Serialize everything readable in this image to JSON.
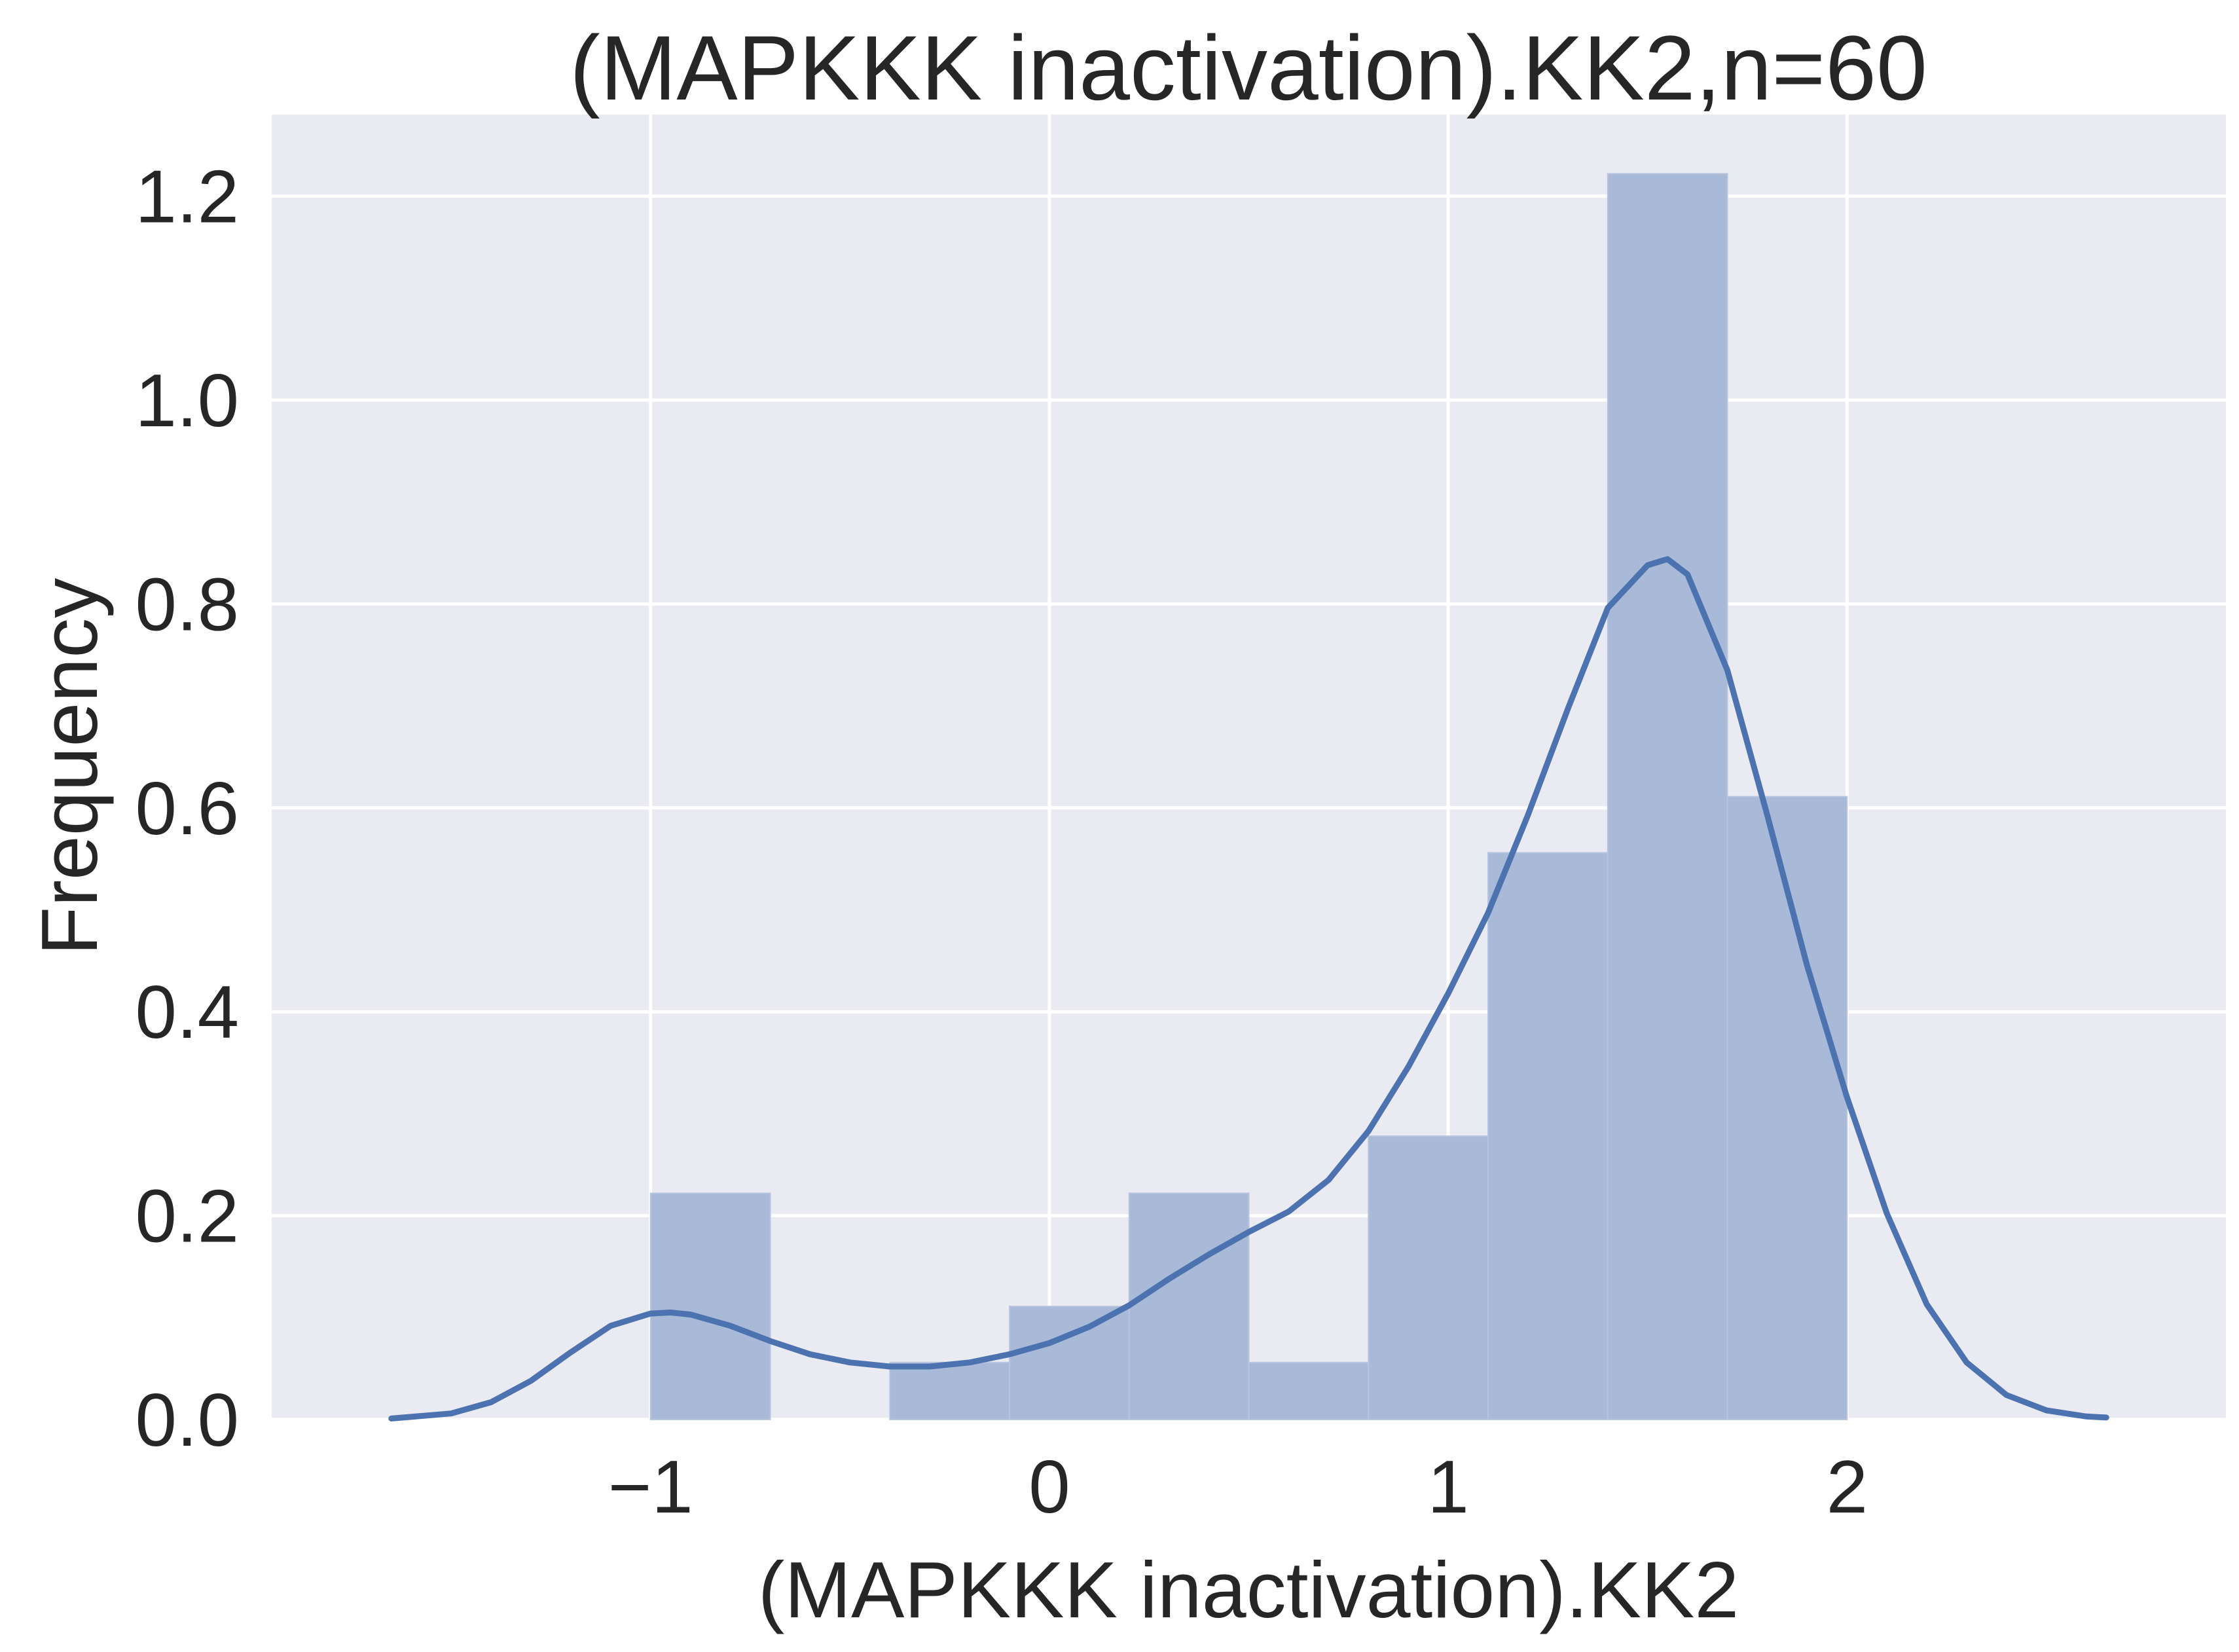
{
  "chart_data": {
    "type": "bar",
    "subtype": "histogram-with-kde",
    "title": "(MAPKKK inactivation).KK2,n=60",
    "xlabel": "(MAPKKK inactivation).KK2",
    "ylabel": "Frequency",
    "xlim": [
      -1.95,
      2.95
    ],
    "ylim": [
      0,
      1.28
    ],
    "xticks": [
      -1,
      0,
      1,
      2
    ],
    "xtick_labels": [
      "−1",
      "0",
      "1",
      "2"
    ],
    "yticks": [
      0.0,
      0.2,
      0.4,
      0.6,
      0.8,
      1.0,
      1.2
    ],
    "ytick_labels": [
      "0.0",
      "0.2",
      "0.4",
      "0.6",
      "0.8",
      "1.0",
      "1.2"
    ],
    "grid": true,
    "colors": {
      "plot_background": "#eaeaf2",
      "grid": "#ffffff",
      "bar_fill": "#a9b9d8",
      "kde_line": "#4c72b0",
      "text": "#262626"
    },
    "bins": [
      {
        "x0": -1.0,
        "x1": -0.7,
        "value": 0.222
      },
      {
        "x0": -0.7,
        "x1": -0.4,
        "value": 0.0
      },
      {
        "x0": -0.4,
        "x1": -0.1,
        "value": 0.056
      },
      {
        "x0": -0.1,
        "x1": 0.2,
        "value": 0.111
      },
      {
        "x0": 0.2,
        "x1": 0.5,
        "value": 0.222
      },
      {
        "x0": 0.5,
        "x1": 0.8,
        "value": 0.056
      },
      {
        "x0": 0.8,
        "x1": 1.1,
        "value": 0.278
      },
      {
        "x0": 1.1,
        "x1": 1.4,
        "value": 0.556
      },
      {
        "x0": 1.4,
        "x1": 1.7,
        "value": 1.222
      },
      {
        "x0": 1.7,
        "x1": 2.0,
        "value": 0.611
      }
    ],
    "kde": {
      "x": [
        -1.65,
        -1.5,
        -1.4,
        -1.3,
        -1.2,
        -1.1,
        -1.0,
        -0.95,
        -0.9,
        -0.8,
        -0.7,
        -0.6,
        -0.5,
        -0.4,
        -0.3,
        -0.2,
        -0.1,
        0.0,
        0.1,
        0.2,
        0.3,
        0.4,
        0.5,
        0.6,
        0.7,
        0.8,
        0.9,
        1.0,
        1.1,
        1.2,
        1.3,
        1.4,
        1.5,
        1.55,
        1.6,
        1.7,
        1.8,
        1.9,
        2.0,
        2.1,
        2.2,
        2.3,
        2.4,
        2.5,
        2.6,
        2.65
      ],
      "y": [
        0.001,
        0.006,
        0.017,
        0.038,
        0.066,
        0.092,
        0.104,
        0.105,
        0.103,
        0.092,
        0.077,
        0.064,
        0.056,
        0.052,
        0.052,
        0.056,
        0.064,
        0.075,
        0.091,
        0.112,
        0.138,
        0.162,
        0.184,
        0.204,
        0.235,
        0.283,
        0.346,
        0.418,
        0.497,
        0.593,
        0.697,
        0.796,
        0.838,
        0.844,
        0.829,
        0.735,
        0.593,
        0.445,
        0.316,
        0.202,
        0.113,
        0.056,
        0.024,
        0.009,
        0.003,
        0.002
      ]
    }
  }
}
